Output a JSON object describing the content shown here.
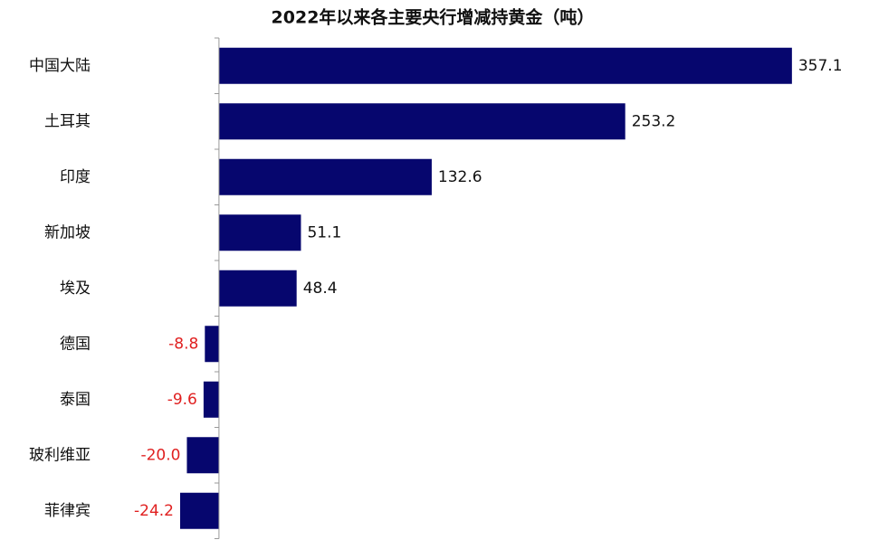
{
  "chart_data": {
    "type": "barh",
    "title": "2022年以来各主要央行增减持黄金（吨）",
    "categories": [
      "中国大陆",
      "土耳其",
      "印度",
      "新加坡",
      "埃及",
      "德国",
      "泰国",
      "玻利维亚",
      "菲律宾"
    ],
    "values": [
      357.1,
      253.2,
      132.6,
      51.1,
      48.4,
      -8.8,
      -9.6,
      -20.0,
      -24.2
    ],
    "value_labels": [
      "357.1",
      "253.2",
      "132.6",
      "51.1",
      "48.4",
      "-8.8",
      "-9.6",
      "-20.0",
      "-24.2"
    ],
    "color": "#06066e",
    "label_color": "#111111",
    "negative_label_color": "#e02020",
    "xlim": [
      -40,
      360
    ]
  }
}
